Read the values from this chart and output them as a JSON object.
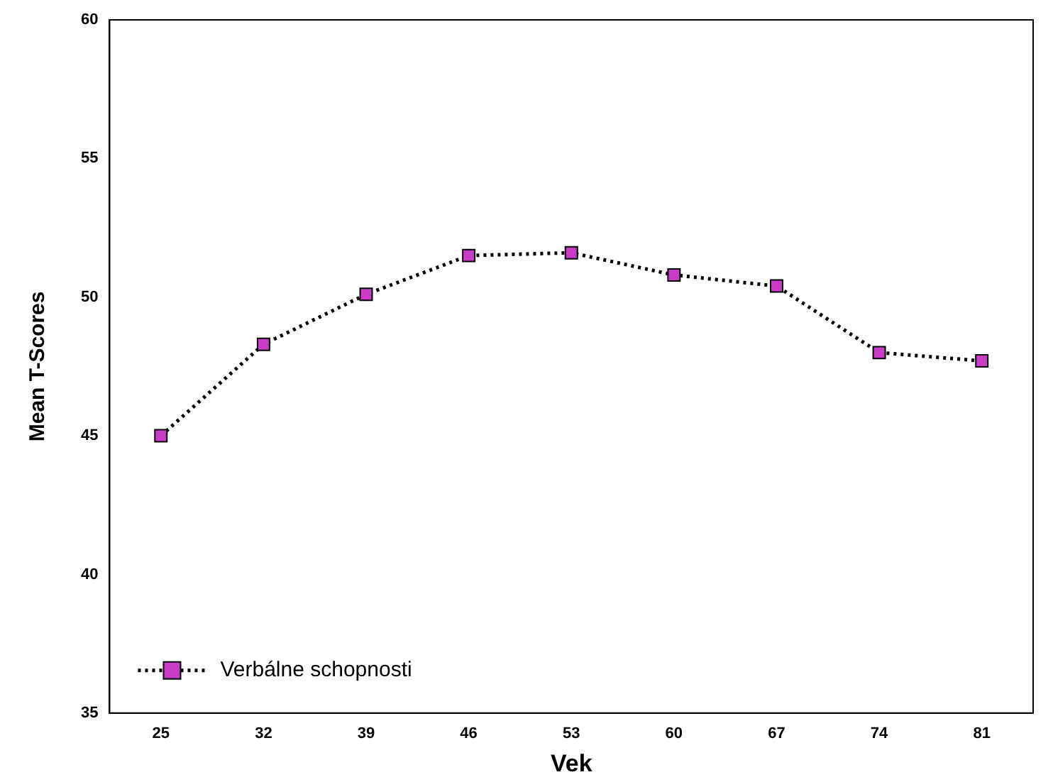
{
  "chart_data": {
    "type": "line",
    "xlabel": "Vek",
    "ylabel": "Mean T-Scores",
    "categories": [
      "25",
      "32",
      "39",
      "46",
      "53",
      "60",
      "67",
      "74",
      "81"
    ],
    "series": [
      {
        "name": "Verbálne schopnosti",
        "color": "#c83cc8",
        "values": [
          45.0,
          48.3,
          50.1,
          51.5,
          51.6,
          50.8,
          50.4,
          48.0,
          47.7
        ]
      }
    ],
    "ylim": [
      35,
      60
    ],
    "yticks": [
      35,
      40,
      45,
      50,
      55,
      60
    ],
    "grid": false,
    "legend": "bottom left",
    "marker": "square",
    "line_style": "dotted"
  }
}
